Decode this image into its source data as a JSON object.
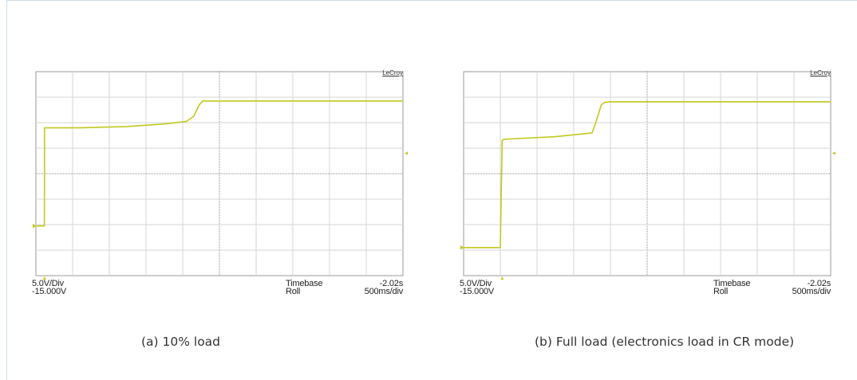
{
  "chart_data": [
    {
      "type": "line",
      "brand": "LeCroy",
      "scale": {
        "vdiv_label": "5.0V/Div",
        "offset_label": "-15.000V"
      },
      "timebase": {
        "label": "Timebase",
        "value": "-2.02s",
        "mode_label": "Roll",
        "rate": "500ms/div"
      },
      "caption": "(a) 10% load",
      "grid": true,
      "xlim": [
        0,
        10
      ],
      "ylim": [
        -4,
        4
      ],
      "series": [
        {
          "color": "#c2c81e",
          "x": [
            0,
            0.12,
            0.23,
            0.235,
            1.2,
            2.5,
            3.5,
            4.1,
            4.3,
            4.45,
            4.55,
            4.7,
            10
          ],
          "y": [
            -2.05,
            -2.05,
            -2.05,
            1.8,
            1.8,
            1.85,
            1.95,
            2.05,
            2.25,
            2.7,
            2.85,
            2.85,
            2.85
          ]
        }
      ]
    },
    {
      "type": "line",
      "brand": "LeCroy",
      "scale": {
        "vdiv_label": "5.0V/Div",
        "offset_label": "-15.000V"
      },
      "timebase": {
        "label": "Timebase",
        "value": "-2.02s",
        "mode_label": "Roll",
        "rate": "500ms/div"
      },
      "caption": "(b) Full load (electronics load in CR mode)",
      "grid": true,
      "xlim": [
        0,
        10
      ],
      "ylim": [
        -4,
        4
      ],
      "series": [
        {
          "color": "#c2c81e",
          "x": [
            0,
            0.9,
            1.0,
            1.05,
            1.1,
            2.5,
            3.5,
            3.6,
            3.75,
            3.85,
            4.0,
            10
          ],
          "y": [
            -2.9,
            -2.9,
            -2.9,
            1.3,
            1.35,
            1.45,
            1.6,
            2.0,
            2.7,
            2.8,
            2.82,
            2.82
          ]
        }
      ]
    }
  ]
}
